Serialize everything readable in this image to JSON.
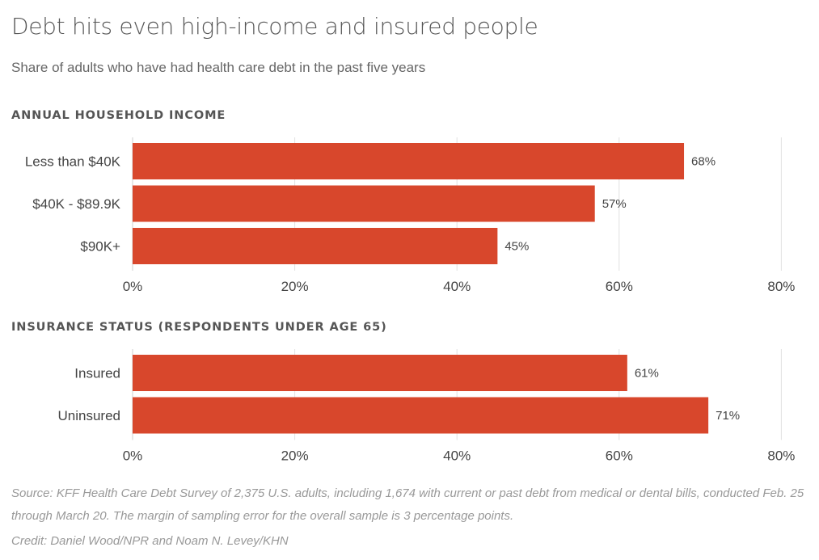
{
  "title": "Debt hits even high-income and insured people",
  "subtitle": "Share of adults who have had health care debt in the past five years",
  "colors": {
    "bar": "#d8472c"
  },
  "chart_data": [
    {
      "type": "bar",
      "orientation": "horizontal",
      "title": "ANNUAL HOUSEHOLD INCOME",
      "categories": [
        "Less than $40K",
        "$40K - $89.9K",
        "$90K+"
      ],
      "values": [
        68,
        57,
        45
      ],
      "value_labels": [
        "68%",
        "57%",
        "45%"
      ],
      "xlim": [
        0,
        80
      ],
      "xticks": [
        0,
        20,
        40,
        60,
        80
      ],
      "xtick_labels": [
        "0%",
        "20%",
        "40%",
        "60%",
        "80%"
      ],
      "grid": true
    },
    {
      "type": "bar",
      "orientation": "horizontal",
      "title": "INSURANCE STATUS (RESPONDENTS UNDER AGE 65)",
      "categories": [
        "Insured",
        "Uninsured"
      ],
      "values": [
        61,
        71
      ],
      "value_labels": [
        "61%",
        "71%"
      ],
      "xlim": [
        0,
        80
      ],
      "xticks": [
        0,
        20,
        40,
        60,
        80
      ],
      "xtick_labels": [
        "0%",
        "20%",
        "40%",
        "60%",
        "80%"
      ],
      "grid": true
    }
  ],
  "source": "Source: KFF Health Care Debt Survey of 2,375 U.S. adults, including 1,674 with current or past debt from medical or dental bills, conducted Feb. 25 through March 20. The margin of sampling error for the overall sample is 3 percentage points.",
  "credit": "Credit: Daniel Wood/NPR and Noam N. Levey/KHN"
}
